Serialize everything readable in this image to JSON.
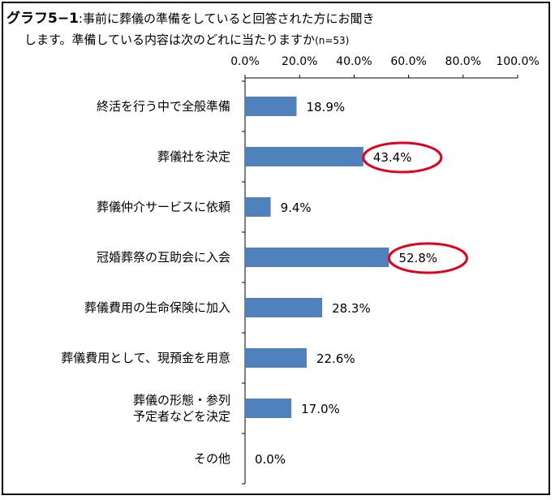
{
  "title": {
    "prefix": "グラフ5−1",
    "line1": ":事前に葬儀の準備をしていると回答された方にお聞き",
    "line2": "します。準備している内容は次のどれに当たりますか",
    "note": "(n=53)"
  },
  "colors": {
    "bar": "#4f81bd",
    "highlight": "#e3001b",
    "axis": "#000000"
  },
  "chart_data": {
    "type": "bar",
    "orientation": "horizontal",
    "xlim": [
      0,
      100
    ],
    "x_ticks": [
      "0.0%",
      "20.0%",
      "40.0%",
      "60.0%",
      "80.0%",
      "100.0%"
    ],
    "x_axis_position": "top",
    "grid": false,
    "categories": [
      [
        "終活を行う中で全般準備"
      ],
      [
        "葬儀社を決定"
      ],
      [
        "葬儀仲介サービスに依頼"
      ],
      [
        "冠婚葬祭の互助会に入会"
      ],
      [
        "葬儀費用の生命保険に加入"
      ],
      [
        "葬儀費用として、現預金を用意"
      ],
      [
        "葬儀の形態・参列",
        "予定者などを決定"
      ],
      [
        "その他"
      ]
    ],
    "values": [
      18.9,
      43.4,
      9.4,
      52.8,
      28.3,
      22.6,
      17.0,
      0.0
    ],
    "value_labels": [
      "18.9%",
      "43.4%",
      "9.4%",
      "52.8%",
      "28.3%",
      "22.6%",
      "17.0%",
      "0.0%"
    ],
    "highlighted": [
      1,
      3
    ]
  }
}
